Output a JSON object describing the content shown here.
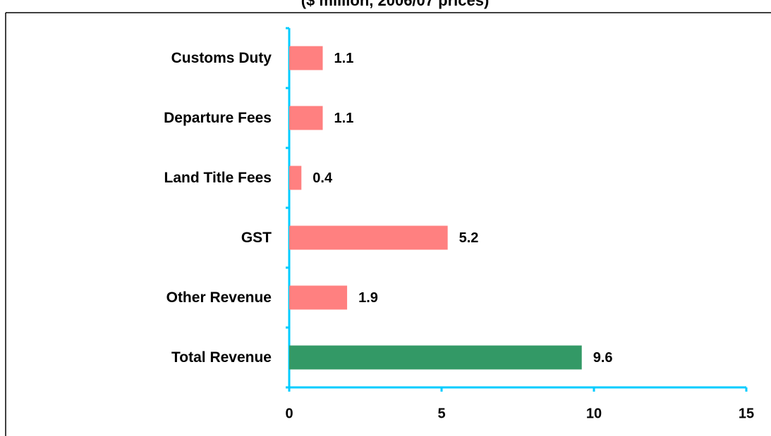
{
  "chart_data": {
    "type": "barh",
    "subtitle": "($ million, 2006/07 prices)",
    "categories": [
      "Customs Duty",
      "Departure Fees",
      "Land Title Fees",
      "GST",
      "Other Revenue",
      "Total Revenue"
    ],
    "values": [
      1.1,
      1.1,
      0.4,
      5.2,
      1.9,
      9.6
    ],
    "colors": [
      "#ff8080",
      "#ff8080",
      "#ff8080",
      "#ff8080",
      "#ff8080",
      "#339966"
    ],
    "xlim": [
      0,
      15
    ],
    "xticks": [
      0,
      5,
      10,
      15
    ]
  }
}
